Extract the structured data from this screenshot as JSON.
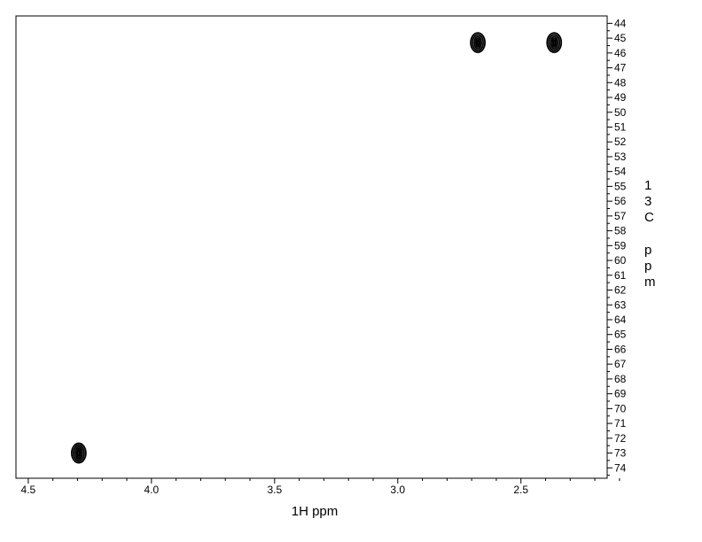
{
  "chart_data": {
    "type": "scatter",
    "title": "",
    "xlabel": "1H ppm",
    "ylabel": "13C ppm",
    "xlim": [
      4.55,
      2.15
    ],
    "ylim": [
      43.5,
      74.7
    ],
    "x_reversed": true,
    "y_reversed": true,
    "grid": false,
    "x_ticks": [
      4.5,
      4.0,
      3.5,
      3.0,
      2.5
    ],
    "x_tick_labels": [
      "4.5",
      "4.0",
      "3.5",
      "3.0",
      "2.5"
    ],
    "y_ticks": [
      44,
      45,
      46,
      47,
      48,
      49,
      50,
      51,
      52,
      53,
      54,
      55,
      56,
      57,
      58,
      59,
      60,
      61,
      62,
      63,
      64,
      65,
      66,
      67,
      68,
      69,
      70,
      71,
      72,
      73,
      74
    ],
    "y_tick_labels": [
      "44",
      "45",
      "46",
      "47",
      "48",
      "49",
      "50",
      "51",
      "52",
      "53",
      "54",
      "55",
      "56",
      "57",
      "58",
      "59",
      "60",
      "61",
      "62",
      "63",
      "64",
      "65",
      "66",
      "67",
      "68",
      "69",
      "70",
      "71",
      "72",
      "73",
      "74"
    ],
    "series": [
      {
        "points": [
          {
            "x": 4.295,
            "y": 73.0
          },
          {
            "x": 2.675,
            "y": 45.3
          },
          {
            "x": 2.365,
            "y": 45.3
          }
        ]
      }
    ],
    "colors": {
      "contour": "#000000",
      "axis": "#000000",
      "background": "#ffffff"
    }
  }
}
